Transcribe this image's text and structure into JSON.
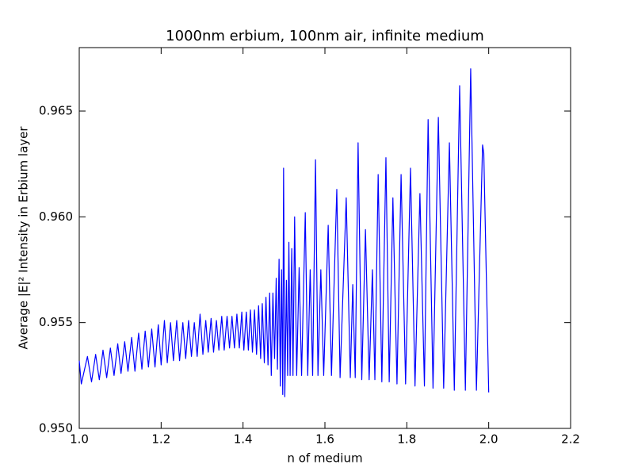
{
  "chart_data": {
    "type": "line",
    "title": "1000nm erbium, 100nm air, infinite medium",
    "xlabel": "n of medium",
    "ylabel": "Average |E|² Intensity in Erbium layer",
    "xlim": [
      1.0,
      2.2
    ],
    "ylim": [
      0.95,
      0.968
    ],
    "xticks": [
      {
        "value": 1.0,
        "label": "1.0"
      },
      {
        "value": 1.2,
        "label": "1.2"
      },
      {
        "value": 1.4,
        "label": "1.4"
      },
      {
        "value": 1.6,
        "label": "1.6"
      },
      {
        "value": 1.8,
        "label": "1.8"
      },
      {
        "value": 2.0,
        "label": "2.0"
      },
      {
        "value": 2.2,
        "label": "2.2"
      }
    ],
    "yticks": [
      {
        "value": 0.95,
        "label": "0.950"
      },
      0.955,
      {
        "value": 0.96,
        "label": "0.960"
      },
      0.965
    ],
    "grid": false,
    "series": [
      {
        "color": "#0000ff",
        "x": [
          1.0,
          1.005,
          1.02,
          1.03,
          1.04,
          1.049,
          1.058,
          1.067,
          1.076,
          1.085,
          1.094,
          1.102,
          1.111,
          1.119,
          1.128,
          1.136,
          1.145,
          1.153,
          1.161,
          1.169,
          1.177,
          1.185,
          1.193,
          1.2,
          1.208,
          1.215,
          1.223,
          1.23,
          1.238,
          1.245,
          1.253,
          1.26,
          1.267,
          1.274,
          1.281,
          1.288,
          1.295,
          1.302,
          1.309,
          1.315,
          1.322,
          1.328,
          1.335,
          1.341,
          1.348,
          1.354,
          1.361,
          1.367,
          1.373,
          1.379,
          1.385,
          1.391,
          1.397,
          1.402,
          1.408,
          1.413,
          1.418,
          1.423,
          1.428,
          1.433,
          1.438,
          1.443,
          1.447,
          1.452,
          1.456,
          1.461,
          1.465,
          1.469,
          1.473,
          1.477,
          1.481,
          1.484,
          1.488,
          1.491,
          1.494,
          1.497,
          1.499,
          1.502,
          1.506,
          1.509,
          1.512,
          1.515,
          1.519,
          1.522,
          1.526,
          1.531,
          1.537,
          1.543,
          1.552,
          1.558,
          1.564,
          1.57,
          1.577,
          1.583,
          1.59,
          1.597,
          1.608,
          1.616,
          1.629,
          1.637,
          1.652,
          1.662,
          1.668,
          1.674,
          1.681,
          1.69,
          1.699,
          1.708,
          1.716,
          1.722,
          1.73,
          1.739,
          1.749,
          1.757,
          1.766,
          1.776,
          1.786,
          1.797,
          1.809,
          1.82,
          1.832,
          1.843,
          1.852,
          1.864,
          1.877,
          1.89,
          1.904,
          1.916,
          1.929,
          1.943,
          1.956,
          1.97,
          1.985,
          1.988,
          2.0
        ],
        "y": [
          0.9532,
          0.9521,
          0.9534,
          0.9522,
          0.9535,
          0.9523,
          0.9537,
          0.9524,
          0.9538,
          0.9525,
          0.954,
          0.9526,
          0.9541,
          0.9527,
          0.9543,
          0.9527,
          0.9545,
          0.9528,
          0.9546,
          0.9529,
          0.9547,
          0.9529,
          0.9549,
          0.953,
          0.9551,
          0.9531,
          0.955,
          0.9532,
          0.9551,
          0.9532,
          0.955,
          0.9533,
          0.9551,
          0.9534,
          0.955,
          0.9534,
          0.9554,
          0.9535,
          0.9551,
          0.9536,
          0.9552,
          0.9536,
          0.9551,
          0.9537,
          0.9553,
          0.9537,
          0.9553,
          0.9538,
          0.9553,
          0.9538,
          0.9554,
          0.9538,
          0.9555,
          0.9537,
          0.9555,
          0.9537,
          0.9556,
          0.9536,
          0.9556,
          0.9535,
          0.9558,
          0.9533,
          0.9559,
          0.9531,
          0.9562,
          0.953,
          0.9564,
          0.9525,
          0.9564,
          0.9533,
          0.9571,
          0.9528,
          0.958,
          0.952,
          0.9575,
          0.9516,
          0.9623,
          0.9515,
          0.957,
          0.9525,
          0.9588,
          0.9525,
          0.9585,
          0.9525,
          0.96,
          0.9525,
          0.9576,
          0.9525,
          0.9602,
          0.9525,
          0.9575,
          0.9525,
          0.9627,
          0.9525,
          0.9575,
          0.9525,
          0.9596,
          0.9525,
          0.9613,
          0.9524,
          0.9609,
          0.9524,
          0.9568,
          0.9524,
          0.9635,
          0.9523,
          0.9594,
          0.9523,
          0.9575,
          0.9523,
          0.962,
          0.9522,
          0.9628,
          0.9522,
          0.9609,
          0.9521,
          0.962,
          0.9521,
          0.9623,
          0.952,
          0.9611,
          0.952,
          0.9646,
          0.9519,
          0.9647,
          0.9519,
          0.9635,
          0.9518,
          0.9662,
          0.9518,
          0.967,
          0.9518,
          0.9634,
          0.963,
          0.9517
        ]
      }
    ]
  }
}
